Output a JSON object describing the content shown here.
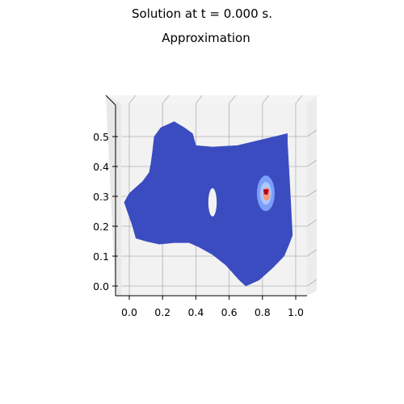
{
  "figure": {
    "suptitle": "Solution at t = 0.000 s.",
    "axes_title": "Approximation"
  },
  "chart_data": {
    "type": "surface-3d",
    "view": "top-down",
    "title": "Approximation",
    "suptitle": "Solution at t = 0.000 s.",
    "xlabel": "",
    "ylabel": "",
    "xlim": [
      -0.07,
      1.07
    ],
    "ylim": [
      -0.05,
      0.6
    ],
    "x_ticks": [
      "0.0",
      "0.2",
      "0.4",
      "0.6",
      "0.8",
      "1.0"
    ],
    "y_ticks": [
      "0.0",
      "0.1",
      "0.2",
      "0.3",
      "0.4",
      "0.5"
    ],
    "grid": true,
    "colormap": "coolwarm",
    "colors": {
      "low": "#3b4cc0",
      "mid_low": "#7b9ff9",
      "mid": "#dddcdc",
      "mid_high": "#f49a7b",
      "high": "#b40426",
      "pane": "#f2f2f2",
      "grid": "#b0b0b0"
    },
    "domain_boundary": [
      [
        0.27,
        0.55
      ],
      [
        0.33,
        0.53
      ],
      [
        0.38,
        0.51
      ],
      [
        0.4,
        0.47
      ],
      [
        0.5,
        0.465
      ],
      [
        0.65,
        0.47
      ],
      [
        0.95,
        0.51
      ],
      [
        0.95,
        0.48
      ],
      [
        0.96,
        0.38
      ],
      [
        0.97,
        0.28
      ],
      [
        0.98,
        0.17
      ],
      [
        0.96,
        0.14
      ],
      [
        0.93,
        0.1
      ],
      [
        0.86,
        0.06
      ],
      [
        0.78,
        0.02
      ],
      [
        0.7,
        0.0
      ],
      [
        0.66,
        0.02
      ],
      [
        0.58,
        0.07
      ],
      [
        0.5,
        0.105
      ],
      [
        0.42,
        0.13
      ],
      [
        0.36,
        0.145
      ],
      [
        0.27,
        0.145
      ],
      [
        0.18,
        0.14
      ],
      [
        0.1,
        0.15
      ],
      [
        0.04,
        0.16
      ],
      [
        0.02,
        0.2
      ],
      [
        -0.03,
        0.28
      ],
      [
        0.0,
        0.31
      ],
      [
        0.04,
        0.33
      ],
      [
        0.08,
        0.35
      ],
      [
        0.12,
        0.38
      ],
      [
        0.13,
        0.41
      ],
      [
        0.14,
        0.45
      ],
      [
        0.15,
        0.5
      ],
      [
        0.19,
        0.53
      ],
      [
        0.23,
        0.54
      ]
    ],
    "hole": {
      "cx": 0.5,
      "cy": 0.28,
      "rx": 0.05,
      "ry": 0.05
    },
    "hotspot": {
      "x": 0.82,
      "y": 0.31,
      "peak": "max",
      "min_level": "min"
    }
  }
}
